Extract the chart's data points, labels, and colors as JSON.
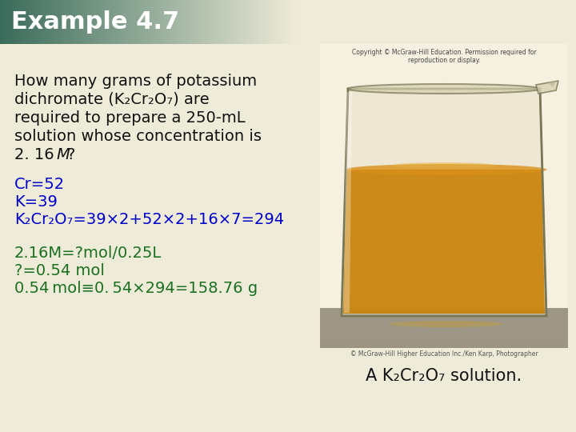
{
  "title": "Example 4.7",
  "title_bg_left": "#3a6b5a",
  "title_bg_right": "#e8e8d0",
  "background_color": "#eeebd8",
  "question_text_lines": [
    "How many grams of potassium",
    "dichromate (K₂Cr₂O₇) are",
    "required to prepare a 250-mL",
    "solution whose concentration is",
    "2. 16 M?"
  ],
  "calc_lines": [
    "Cr=52",
    "K=39",
    "K₂Cr₂O₇=39×2+52×2+16×7=294"
  ],
  "solution_lines": [
    "2.16M=?mol/0.25L",
    "?=0.54 mol",
    "0.54 mol≡0. 54×294=158.76 g"
  ],
  "caption": "A K₂Cr₂O₇ solution.",
  "calc_color": "#0000cc",
  "solution_color": "#1a7020",
  "question_color": "#111111",
  "caption_color": "#111111",
  "title_color": "#ffffff",
  "copyright_top": "Copyright © McGraw-Hill Education. Permission required for",
  "copyright_top2": "reproduction or display.",
  "copyright_bottom": "© McGraw-Hill Higher Education Inc./Ken Karp, Photographer"
}
